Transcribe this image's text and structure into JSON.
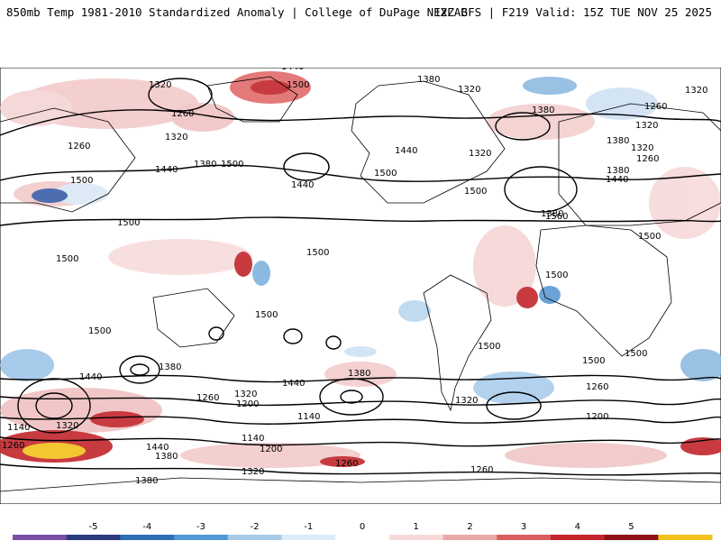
{
  "header": {
    "left": "850mb Temp 1981-2010 Standardized Anomaly | College of DuPage NEXLAB",
    "right": "12Z GFS | F219 Valid: 15Z TUE NOV 25 2025"
  },
  "contour_labels": [
    "1440",
    "1500",
    "1380",
    "1320",
    "1260",
    "1320",
    "1260",
    "1320",
    "1380",
    "1500",
    "1440",
    "1500",
    "1500",
    "1440",
    "1380",
    "1320",
    "1260",
    "1500",
    "1440",
    "1320",
    "1380",
    "1320",
    "1260",
    "1380",
    "1320",
    "1440",
    "1380",
    "1500",
    "1560",
    "1500",
    "1500",
    "1500",
    "1500",
    "1500",
    "1500",
    "1500",
    "1500",
    "1500",
    "1380",
    "1440",
    "1380",
    "1440",
    "1320",
    "1200",
    "1140",
    "1260",
    "1320",
    "1260",
    "1200",
    "1140",
    "1140",
    "1320",
    "1260",
    "1440",
    "1380",
    "1380",
    "1200",
    "1260",
    "1320",
    "1260"
  ],
  "colorbar": {
    "ticks": [
      "-5",
      "-4",
      "-3",
      "-2",
      "-1",
      "0",
      "1",
      "2",
      "3",
      "4",
      "5"
    ],
    "colors": [
      "#7b4fa6",
      "#2b3a7d",
      "#2f6fb6",
      "#4f9ad6",
      "#a6cbe8",
      "#dcebf7",
      "#ffffff",
      "#f7d9d9",
      "#e9a8a8",
      "#d95f5f",
      "#c2262c",
      "#8f1016",
      "#f2c11b"
    ]
  },
  "map": {
    "land_outline": "#000000",
    "contour_color": "#000000"
  }
}
